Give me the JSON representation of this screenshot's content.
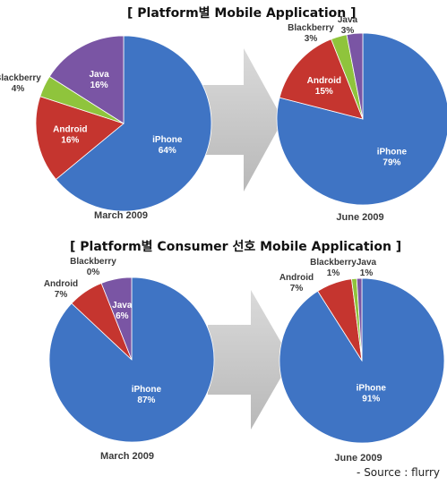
{
  "source": "- Source : flurry",
  "chart_data": [
    {
      "title": "[ Platform별 Mobile Application ]",
      "type": "pie",
      "charts": [
        {
          "caption": "March 2009",
          "slices": [
            {
              "name": "iPhone",
              "value": 64,
              "label": "64%"
            },
            {
              "name": "Android",
              "value": 16,
              "label": "16%"
            },
            {
              "name": "Blackberry",
              "value": 4,
              "label": "4%"
            },
            {
              "name": "Java",
              "value": 16,
              "label": "16%"
            }
          ]
        },
        {
          "caption": "June 2009",
          "slices": [
            {
              "name": "iPhone",
              "value": 79,
              "label": "79%"
            },
            {
              "name": "Android",
              "value": 15,
              "label": "15%"
            },
            {
              "name": "Blackberry",
              "value": 3,
              "label": "3%"
            },
            {
              "name": "Java",
              "value": 3,
              "label": "3%"
            }
          ]
        }
      ]
    },
    {
      "title": "[ Platform별 Consumer 선호 Mobile Application ]",
      "type": "pie",
      "charts": [
        {
          "caption": "March 2009",
          "slices": [
            {
              "name": "iPhone",
              "value": 87,
              "label": "87%"
            },
            {
              "name": "Android",
              "value": 7,
              "label": "7%"
            },
            {
              "name": "Blackberry",
              "value": 0,
              "label": "0%"
            },
            {
              "name": "Java",
              "value": 6,
              "label": "6%"
            }
          ]
        },
        {
          "caption": "June 2009",
          "slices": [
            {
              "name": "iPhone",
              "value": 91,
              "label": "91%"
            },
            {
              "name": "Android",
              "value": 7,
              "label": "7%"
            },
            {
              "name": "Blackberry",
              "value": 1,
              "label": "1%"
            },
            {
              "name": "Java",
              "value": 1,
              "label": "1%"
            }
          ]
        }
      ]
    }
  ],
  "colors": {
    "iPhone": "#3f74c4",
    "Android": "#c5352f",
    "Blackberry": "#8fc43c",
    "Java": "#7a55a4",
    "arrow": "#c8c8c8"
  }
}
